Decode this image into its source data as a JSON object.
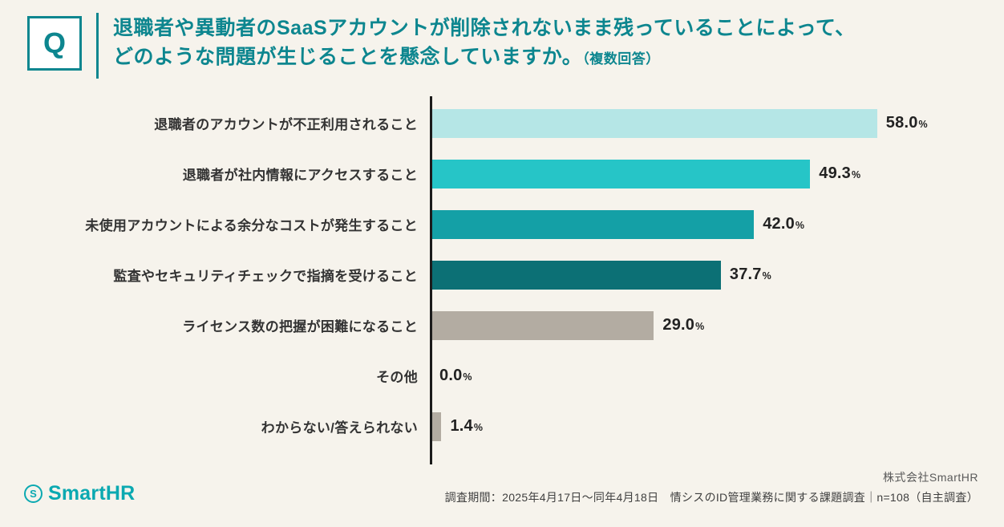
{
  "header": {
    "q_label": "Q",
    "title_line1": "退職者や異動者のSaaSアカウントが削除されないまま残っていることによって、",
    "title_line2": "どのような問題が生じることを懸念していますか。",
    "title_note": "（複数回答）"
  },
  "chart_data": {
    "type": "bar",
    "orientation": "horizontal",
    "title": "退職者や異動者のSaaSアカウントが削除されないまま残っていることによって、どのような問題が生じることを懸念していますか。（複数回答）",
    "categories": [
      "退職者のアカウントが不正利用されること",
      "退職者が社内情報にアクセスすること",
      "未使用アカウントによる余分なコストが発生すること",
      "監査やセキュリティチェックで指摘を受けること",
      "ライセンス数の把握が困難になること",
      "その他",
      "わからない/答えられない"
    ],
    "values": [
      58.0,
      49.3,
      42.0,
      37.7,
      29.0,
      0.0,
      1.4
    ],
    "value_labels": [
      "58.0",
      "49.3",
      "42.0",
      "37.7",
      "29.0",
      "0.0",
      "1.4"
    ],
    "unit": "%",
    "bar_colors": [
      "#b5e6e6",
      "#26c5c7",
      "#14a0a6",
      "#0c7075",
      "#b3aca2",
      "#b3aca2",
      "#b3aca2"
    ],
    "xlim": [
      0,
      60
    ],
    "grid": false,
    "legend": "none"
  },
  "footer": {
    "logo_text": "SmartHR",
    "logo_icon": "S",
    "company": "株式会社SmartHR",
    "survey_note": "調査期間：2025年4月17日〜同年4月18日　情シスのID管理業務に関する課題調査｜n=108（自主調査）"
  },
  "colors": {
    "background": "#f6f3ec",
    "title_teal": "#0d868f",
    "axis": "#1b1b1b",
    "logo_teal": "#0ba9b1"
  }
}
